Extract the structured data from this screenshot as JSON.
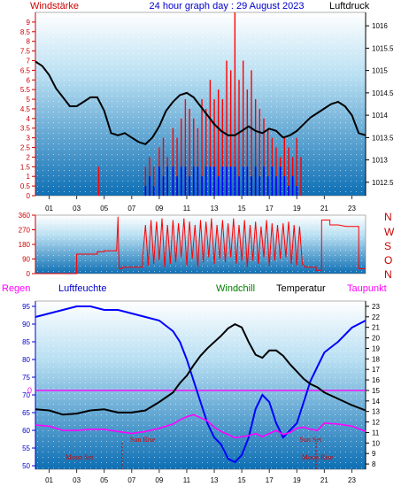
{
  "header": {
    "left_label": "Windstärke",
    "title": "24 hour graph day : 29 August 2023",
    "right_label": "Luftdruck"
  },
  "direction_labels": [
    "N",
    "W",
    "S",
    "O",
    "N"
  ],
  "bottom_legend": {
    "regen": "Regen",
    "luftfeuchte": "Luftfeuchte",
    "windchill": "Windchill",
    "temperatur": "Temperatur",
    "taupunkt": "Taupunkt"
  },
  "colors": {
    "wind_axis": "#cc0000",
    "pressure": "#000000",
    "gust": "#ff0000",
    "wind_avg": "#0000ff",
    "direction": "#ff0000",
    "humidity": "#0000ff",
    "temperature": "#000000",
    "dewpoint": "#ff00ff",
    "rain": "#ff00ff",
    "windchill_label": "#008000",
    "astro": "#cc0000",
    "bg_top": "#ffffff",
    "bg_bottom": "#0e6fb4"
  },
  "chart_data": [
    {
      "type": "line",
      "name": "wind-pressure",
      "x_unit": "hour",
      "xlim": [
        0,
        24
      ],
      "x_ticks": [
        "01",
        "03",
        "05",
        "07",
        "09",
        "11",
        "13",
        "15",
        "17",
        "19",
        "21",
        "23"
      ],
      "y_left_ticks": [
        "0",
        "0.5",
        "1",
        "1.5",
        "2",
        "2.5",
        "3",
        "3.5",
        "4",
        "4.5",
        "5",
        "5.5",
        "6",
        "6.5",
        "7",
        "7.5",
        "8",
        "8.5",
        "9"
      ],
      "y_left_lim": [
        0,
        9.5
      ],
      "y_right_ticks": [
        "1012.5",
        "1013",
        "1013.5",
        "1014",
        "1014.5",
        "1015",
        "1015.5",
        "1016"
      ],
      "y_right_lim": [
        1012.2,
        1016.3
      ],
      "pressure": {
        "x": [
          0,
          0.5,
          1,
          1.5,
          2,
          2.5,
          3,
          3.5,
          4,
          4.5,
          5,
          5.5,
          6,
          6.5,
          7,
          7.5,
          8,
          8.5,
          9,
          9.5,
          10,
          10.5,
          11,
          11.5,
          12,
          12.5,
          13,
          13.5,
          14,
          14.5,
          15,
          15.5,
          16,
          16.5,
          17,
          17.5,
          18,
          18.5,
          19,
          19.5,
          20,
          20.5,
          21,
          21.5,
          22,
          22.5,
          23,
          23.5,
          24
        ],
        "y": [
          1015.2,
          1015.1,
          1014.9,
          1014.6,
          1014.4,
          1014.2,
          1014.2,
          1014.3,
          1014.4,
          1014.4,
          1014.1,
          1013.6,
          1013.55,
          1013.6,
          1013.5,
          1013.4,
          1013.35,
          1013.5,
          1013.75,
          1014.1,
          1014.3,
          1014.45,
          1014.5,
          1014.4,
          1014.2,
          1014.0,
          1013.8,
          1013.65,
          1013.55,
          1013.55,
          1013.65,
          1013.75,
          1013.65,
          1013.6,
          1013.7,
          1013.65,
          1013.5,
          1013.55,
          1013.65,
          1013.8,
          1013.95,
          1014.05,
          1014.15,
          1014.25,
          1014.3,
          1014.2,
          1014.0,
          1013.6,
          1013.55
        ]
      },
      "gust": {
        "x": [
          4.6,
          8.0,
          8.3,
          8.6,
          9.0,
          9.3,
          9.6,
          10.0,
          10.3,
          10.6,
          10.9,
          11.2,
          11.5,
          11.8,
          12.1,
          12.4,
          12.7,
          13.0,
          13.3,
          13.6,
          13.9,
          14.2,
          14.5,
          14.8,
          15.1,
          15.4,
          15.7,
          16.0,
          16.3,
          16.6,
          16.9,
          17.2,
          17.5,
          17.8,
          18.1,
          18.4,
          18.7,
          19.0,
          19.3
        ],
        "y": [
          1.5,
          1.5,
          2.0,
          1.5,
          2.5,
          3.0,
          2.0,
          3.5,
          3.0,
          4.0,
          5.0,
          4.5,
          4.0,
          3.5,
          5.0,
          4.5,
          6.0,
          5.0,
          5.5,
          5.0,
          7.0,
          6.5,
          9.5,
          6.0,
          7.0,
          5.5,
          6.5,
          5.0,
          4.5,
          4.0,
          3.5,
          3.0,
          2.5,
          2.0,
          3.0,
          2.5,
          2.0,
          3.0,
          2.0
        ]
      },
      "wind_avg": {
        "x": [
          8.0,
          8.3,
          8.6,
          9.0,
          9.3,
          9.6,
          10.0,
          10.3,
          10.6,
          10.9,
          11.2,
          11.5,
          11.8,
          12.1,
          12.4,
          12.7,
          13.0,
          13.3,
          13.6,
          13.9,
          14.2,
          14.5,
          14.8,
          15.1,
          15.4,
          15.7,
          16.0,
          16.3,
          16.6,
          16.9,
          17.2,
          17.5,
          17.8,
          18.1,
          18.4,
          18.7,
          19.0
        ],
        "y": [
          0.5,
          1.0,
          0.5,
          1.5,
          1.0,
          1.5,
          1.5,
          1.0,
          1.5,
          1.5,
          1.0,
          1.5,
          1.5,
          1.0,
          1.5,
          1.5,
          1.5,
          1.0,
          1.5,
          1.5,
          1.5,
          1.5,
          1.0,
          1.5,
          1.5,
          1.0,
          1.5,
          1.0,
          1.5,
          1.0,
          1.5,
          1.0,
          1.5,
          1.0,
          0.5,
          1.0,
          0.5
        ]
      }
    },
    {
      "type": "line",
      "name": "wind-direction",
      "x_unit": "hour",
      "xlim": [
        0,
        24
      ],
      "y_ticks": [
        "0",
        "90",
        "180",
        "270",
        "360"
      ],
      "ylim": [
        0,
        360
      ],
      "direction": {
        "x": [
          0,
          3.0,
          3.0,
          4.5,
          4.5,
          5.0,
          5.0,
          5.9,
          6.0,
          6.05,
          6.1,
          6.3,
          6.3,
          7.8,
          7.8,
          8.0,
          8.2,
          8.4,
          8.6,
          8.8,
          9.0,
          9.2,
          9.4,
          9.6,
          9.8,
          10.0,
          10.2,
          10.4,
          10.6,
          10.8,
          11.0,
          11.2,
          11.4,
          11.6,
          11.8,
          12.0,
          12.2,
          12.4,
          12.6,
          12.8,
          13.0,
          13.2,
          13.4,
          13.6,
          13.8,
          14.0,
          14.2,
          14.4,
          14.6,
          14.8,
          15.0,
          15.2,
          15.4,
          15.6,
          15.8,
          16.0,
          16.2,
          16.4,
          16.6,
          16.8,
          17.0,
          17.2,
          17.4,
          17.6,
          17.8,
          18.0,
          18.2,
          18.4,
          18.6,
          18.8,
          19.0,
          19.2,
          19.4,
          19.6,
          20.4,
          20.4,
          20.8,
          20.8,
          21.4,
          21.4,
          22.0,
          22.6,
          23.5,
          23.5,
          24
        ],
        "y": [
          0,
          0,
          120,
          120,
          135,
          135,
          140,
          140,
          350,
          140,
          30,
          30,
          40,
          40,
          100,
          300,
          50,
          330,
          60,
          320,
          80,
          340,
          40,
          300,
          60,
          330,
          70,
          310,
          100,
          340,
          50,
          320,
          90,
          300,
          40,
          330,
          70,
          320,
          100,
          340,
          60,
          300,
          90,
          330,
          70,
          310,
          100,
          340,
          60,
          300,
          80,
          330,
          40,
          300,
          80,
          320,
          60,
          290,
          100,
          330,
          50,
          310,
          80,
          300,
          90,
          310,
          100,
          320,
          60,
          300,
          50,
          290,
          60,
          40,
          40,
          20,
          20,
          330,
          330,
          300,
          300,
          290,
          290,
          30,
          30
        ]
      }
    },
    {
      "type": "line",
      "name": "temperature-humidity",
      "x_unit": "hour",
      "xlim": [
        0,
        24
      ],
      "y_left_ticks": [
        "50",
        "55",
        "60",
        "65",
        "70",
        "75",
        "80",
        "85",
        "90",
        "95"
      ],
      "y_left_lim": [
        49,
        96.5
      ],
      "y_left_zero_label": "0",
      "y_right_ticks": [
        "8",
        "9",
        "10",
        "11",
        "12",
        "13",
        "14",
        "15",
        "16",
        "17",
        "18",
        "19",
        "20",
        "21",
        "22",
        "23"
      ],
      "y_right_lim": [
        7.5,
        23.5
      ],
      "annotations": {
        "sun_rise": "Sun Rise",
        "sun_set": "Sun Set",
        "moon_set": "Moon Set",
        "moon_rise": "Moon Rise"
      },
      "humidity": {
        "x": [
          0,
          1,
          2,
          3,
          4,
          5,
          6,
          7,
          8,
          9,
          10,
          10.5,
          11,
          11.5,
          12,
          12.5,
          13,
          13.5,
          14,
          14.5,
          15,
          15.5,
          16,
          16.5,
          17,
          17.5,
          18,
          18.5,
          19,
          19.5,
          20,
          20.5,
          21,
          22,
          23,
          24
        ],
        "y": [
          92,
          93,
          94,
          95,
          95,
          94,
          94,
          93,
          92,
          91,
          88,
          85,
          80,
          74,
          68,
          62,
          58,
          56,
          52,
          51,
          53,
          58,
          66,
          70,
          68,
          62,
          58,
          60,
          62,
          68,
          74,
          78,
          82,
          85,
          89,
          91
        ]
      },
      "temperature": {
        "x": [
          0,
          1,
          2,
          3,
          4,
          5,
          6,
          7,
          8,
          9,
          10,
          10.5,
          11,
          11.5,
          12,
          12.5,
          13,
          13.5,
          14,
          14.5,
          15,
          15.5,
          16,
          16.5,
          17,
          17.5,
          18,
          18.5,
          19,
          19.5,
          20,
          20.5,
          21,
          22,
          23,
          24
        ],
        "y": [
          13.2,
          13.1,
          12.7,
          12.8,
          13.1,
          13.2,
          12.9,
          12.9,
          13.1,
          13.9,
          14.8,
          15.7,
          16.4,
          17.4,
          18.3,
          19.0,
          19.6,
          20.2,
          20.9,
          21.3,
          21.0,
          19.6,
          18.4,
          18.1,
          18.8,
          18.8,
          18.3,
          17.5,
          16.8,
          16.1,
          15.6,
          15.3,
          14.8,
          14.2,
          13.6,
          13.1
        ]
      },
      "dewpoint": {
        "x": [
          0,
          1,
          2,
          3,
          4,
          5,
          6,
          7,
          8,
          9,
          10,
          10.5,
          11,
          11.5,
          12,
          12.5,
          13,
          13.5,
          14,
          14.5,
          15,
          15.5,
          16,
          16.5,
          17,
          17.5,
          18,
          18.5,
          19,
          19.5,
          20,
          20.5,
          21,
          22,
          23,
          24
        ],
        "y": [
          11.7,
          11.6,
          11.2,
          11.2,
          11.3,
          11.3,
          11.1,
          10.9,
          11.1,
          11.4,
          11.8,
          12.2,
          12.5,
          12.7,
          12.4,
          12.1,
          11.5,
          11.1,
          10.8,
          10.5,
          10.6,
          10.7,
          10.9,
          10.6,
          10.9,
          11.2,
          10.8,
          11.0,
          11.4,
          11.5,
          11.3,
          11.2,
          11.9,
          11.8,
          11.6,
          11.1
        ]
      },
      "rain": 0
    }
  ]
}
